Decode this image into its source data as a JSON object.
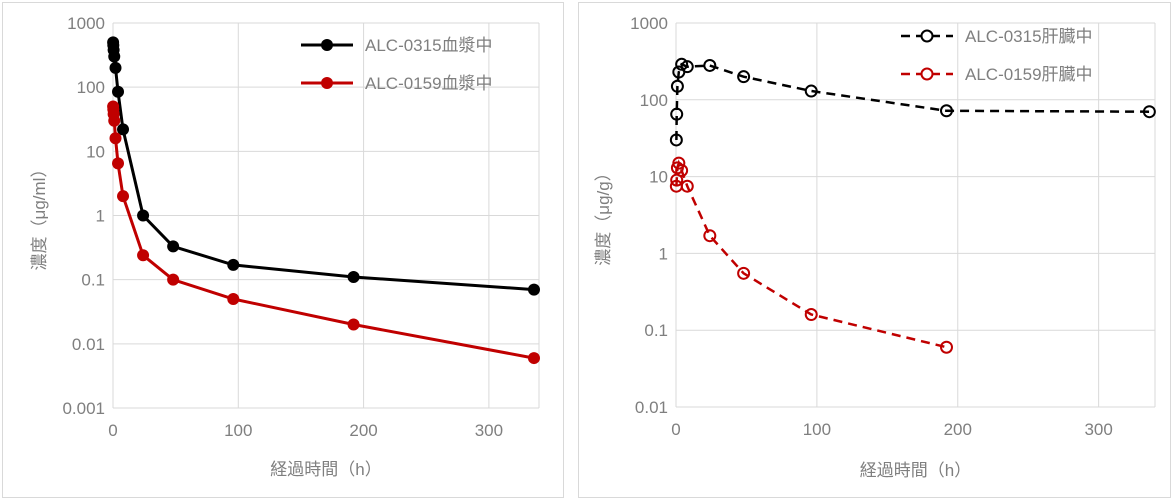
{
  "chart_data": [
    {
      "type": "line",
      "xlabel": "経過時間（h）",
      "ylabel": "濃度（μg/ml）",
      "xlim": [
        0,
        340
      ],
      "ylim": [
        0.001,
        1000
      ],
      "y_scale": "log",
      "x_ticks": [
        "0",
        "100",
        "200",
        "300"
      ],
      "y_ticks": [
        "0.001",
        "0.01",
        "0.1",
        "1",
        "10",
        "100",
        "1000"
      ],
      "grid": true,
      "legend_position": "top-right",
      "series": [
        {
          "name": "ALC-0315血漿中",
          "color": "#000000",
          "line_style": "solid",
          "marker": "filled-circle",
          "x": [
            0.1,
            0.25,
            0.5,
            1,
            2,
            4,
            8,
            24,
            48,
            96,
            192,
            336
          ],
          "y": [
            500,
            450,
            380,
            300,
            200,
            85,
            22,
            1.0,
            0.33,
            0.17,
            0.11,
            0.07
          ]
        },
        {
          "name": "ALC-0159血漿中",
          "color": "#c00000",
          "line_style": "solid",
          "marker": "filled-circle",
          "x": [
            0.1,
            0.25,
            0.5,
            1,
            2,
            4,
            8,
            24,
            48,
            96,
            192,
            336
          ],
          "y": [
            50,
            45,
            38,
            30,
            16,
            6.5,
            2.0,
            0.24,
            0.1,
            0.05,
            0.02,
            0.006
          ]
        }
      ]
    },
    {
      "type": "line",
      "xlabel": "経過時間（h）",
      "ylabel": "濃度（μg/g）",
      "xlim": [
        0,
        340
      ],
      "ylim": [
        0.01,
        1000
      ],
      "y_scale": "log",
      "x_ticks": [
        "0",
        "100",
        "200",
        "300"
      ],
      "y_ticks": [
        "0.01",
        "0.1",
        "1",
        "10",
        "100",
        "1000"
      ],
      "grid": true,
      "legend_position": "top-right",
      "series": [
        {
          "name": "ALC-0315肝臓中",
          "color": "#000000",
          "line_style": "dashed",
          "marker": "open-circle",
          "x": [
            0.25,
            0.5,
            1,
            2,
            4,
            8,
            24,
            48,
            96,
            192,
            336
          ],
          "y": [
            30,
            65,
            150,
            230,
            290,
            270,
            280,
            200,
            130,
            72,
            70
          ]
        },
        {
          "name": "ALC-0159肝臓中",
          "color": "#c00000",
          "line_style": "dashed",
          "marker": "open-circle",
          "x": [
            0.25,
            0.5,
            1,
            2,
            4,
            8,
            24,
            48,
            96,
            192
          ],
          "y": [
            7.5,
            9,
            13,
            15,
            12,
            7.5,
            1.7,
            0.55,
            0.16,
            0.06
          ]
        }
      ]
    }
  ]
}
